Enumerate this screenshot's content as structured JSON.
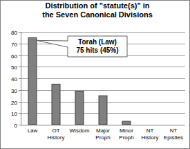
{
  "chart_data": {
    "type": "bar",
    "title": [
      "Distribution of \"statute(s)\" in",
      "the Seven Canonical Divisions"
    ],
    "categories": [
      "Law",
      "OT History",
      "Wisdom",
      "Major Proph",
      "Minor Proph",
      "NT History",
      "NT Epistles"
    ],
    "values": [
      75,
      35,
      29,
      25,
      3,
      0,
      0
    ],
    "color": "#808080",
    "ylim": [
      0,
      80
    ],
    "yticks": [
      0,
      10,
      20,
      30,
      40,
      50,
      60,
      70,
      80
    ],
    "grid": true,
    "annotation": [
      "Torah (Law)",
      "75 hits (45%)"
    ]
  }
}
